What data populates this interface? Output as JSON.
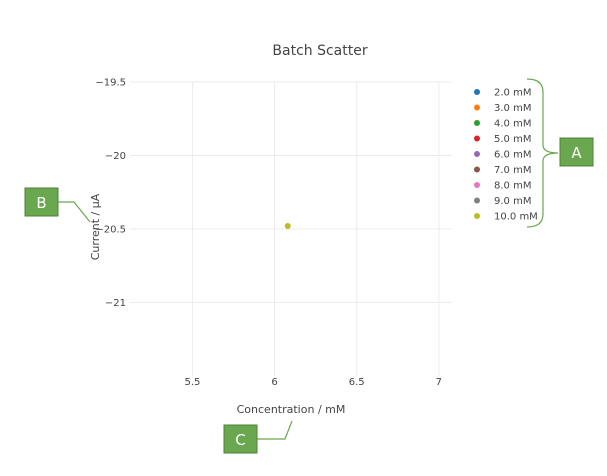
{
  "chart_data": {
    "type": "scatter",
    "title": "Batch Scatter",
    "xlabel": "Concentration / mM",
    "ylabel": "Current / μA",
    "xlim": [
      5.12,
      7.08
    ],
    "ylim": [
      -21.5,
      -19.5
    ],
    "x_ticks": [
      "5.5",
      "6",
      "6.5",
      "7"
    ],
    "x_tick_values": [
      5.5,
      6,
      6.5,
      7
    ],
    "y_ticks": [
      "−19.5",
      "−20",
      "−20.5",
      "−21"
    ],
    "y_tick_values": [
      -19.5,
      -20,
      -20.5,
      -21
    ],
    "grid": true,
    "legend_position": "right",
    "series": [
      {
        "name": "2.0 mM",
        "color": "#1f77b4",
        "points": []
      },
      {
        "name": "3.0 mM",
        "color": "#ff7f0e",
        "points": []
      },
      {
        "name": "4.0 mM",
        "color": "#2ca02c",
        "points": []
      },
      {
        "name": "5.0 mM",
        "color": "#d62728",
        "points": []
      },
      {
        "name": "6.0 mM",
        "color": "#9467bd",
        "points": []
      },
      {
        "name": "7.0 mM",
        "color": "#8c564b",
        "points": []
      },
      {
        "name": "8.0 mM",
        "color": "#e377c2",
        "points": []
      },
      {
        "name": "9.0 mM",
        "color": "#7f7f7f",
        "points": []
      },
      {
        "name": "10.0 mM",
        "color": "#bcbd22",
        "points": [
          {
            "x": 6.08,
            "y": -20.48
          }
        ]
      }
    ]
  },
  "callouts": {
    "a": "A",
    "b": "B",
    "c": "C"
  }
}
